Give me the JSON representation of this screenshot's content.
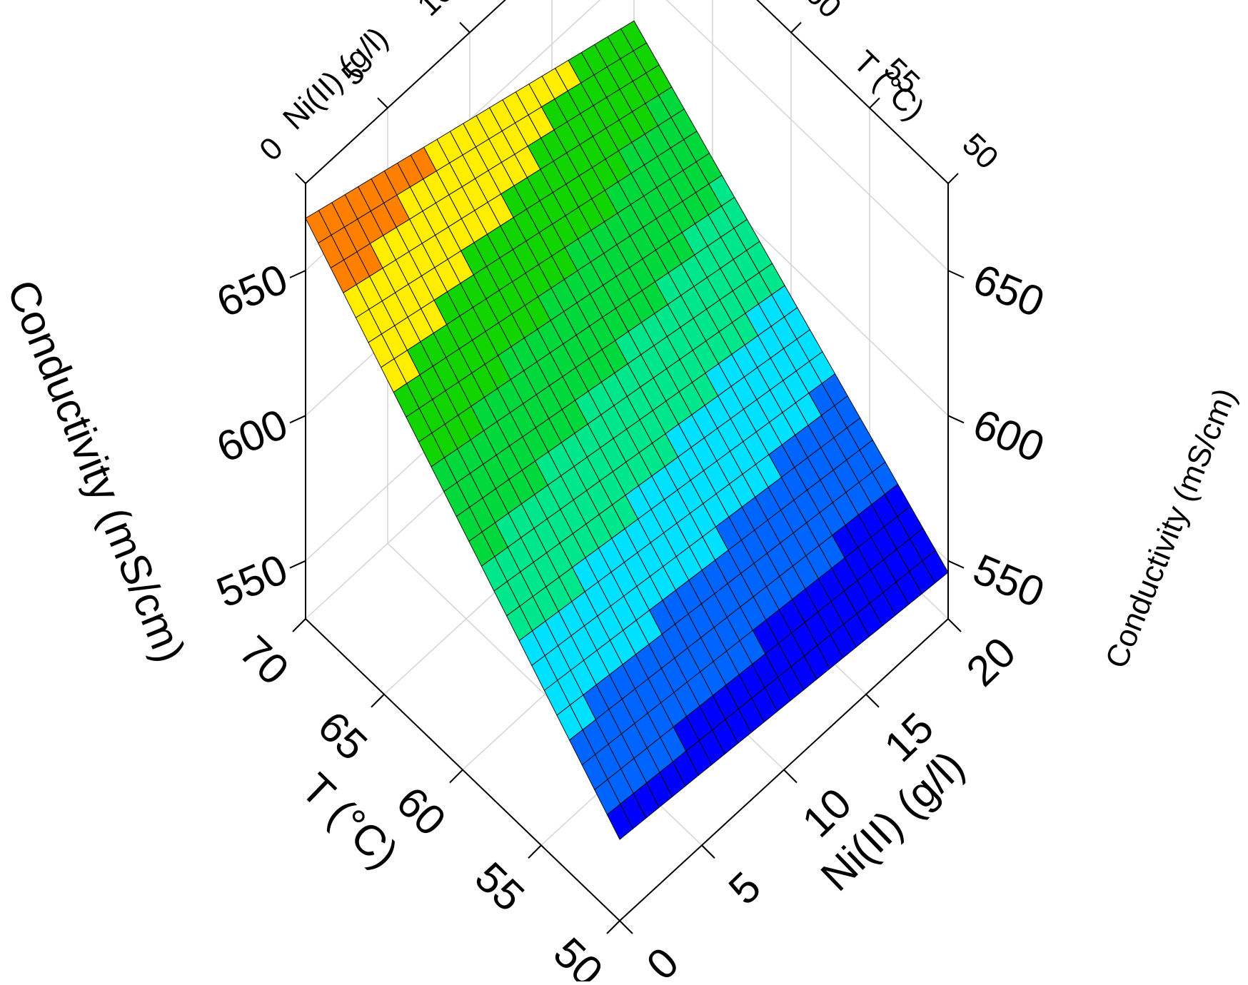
{
  "chart_data": {
    "type": "surface",
    "title": "",
    "x_axis": {
      "label": "Ni(II) (g/l)",
      "range": [
        0,
        20
      ],
      "ticks": [
        0,
        5,
        10,
        15,
        20
      ]
    },
    "y_axis": {
      "label": "T (°C)",
      "range": [
        50,
        70
      ],
      "ticks": [
        50,
        55,
        60,
        65,
        70
      ]
    },
    "z_axis": {
      "label": "Conductivity (mS/cm)",
      "range": [
        530,
        680
      ],
      "ticks": [
        550,
        600,
        650
      ]
    },
    "axis_labels": {
      "ni_back": "Ni(II) (g/l)",
      "t_back": "T (°C)",
      "cond_left": "Conductivity (mS/cm)",
      "cond_right": "Conductivity (mS/cm)",
      "t_front": "T (°C)",
      "ni_front": "Ni(II) (g/l)"
    },
    "tick_labels": {
      "ni": [
        "0",
        "5",
        "10",
        "15",
        "20"
      ],
      "t": [
        "50",
        "55",
        "60",
        "65",
        "70"
      ],
      "cond": [
        "550",
        "600",
        "650"
      ]
    },
    "corners": [
      {
        "ni": 0,
        "t": 70,
        "conductivity": 668
      },
      {
        "ni": 20,
        "t": 70,
        "conductivity": 632
      },
      {
        "ni": 20,
        "t": 50,
        "conductivity": 546
      },
      {
        "ni": 0,
        "t": 50,
        "conductivity": 558
      }
    ],
    "grid": true,
    "mesh_lines": 25,
    "colormap": [
      "#0000ff",
      "#0064ff",
      "#00e0ff",
      "#00e68a",
      "#00d83c",
      "#12d400",
      "#ffee00",
      "#ff8000"
    ]
  }
}
